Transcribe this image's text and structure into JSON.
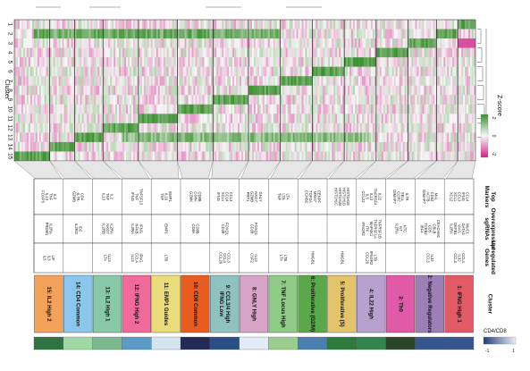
{
  "chart_data": {
    "type": "heatmap",
    "figure_orientation": "rotated 90 degrees counter-clockwise",
    "rows": [
      "1",
      "2",
      "3",
      "4",
      "5",
      "6",
      "7",
      "8",
      "9",
      "10",
      "11",
      "12",
      "13",
      "14",
      "15"
    ],
    "row_axis_label": "Cluster",
    "colorbar": {
      "label": "Z-score",
      "ticks": [
        "2",
        "0",
        "-2"
      ],
      "colors": {
        "high": "#3a8f2e",
        "mid": "#f7f7f7",
        "low": "#d1208a"
      }
    },
    "header_labels": {
      "markers": "Top Markers",
      "overexpressed": "Overexpressed sgRNAs",
      "upregulated": "Upregulated Genes",
      "cluster": "Cluster"
    },
    "clusters": [
      {
        "name": "1: IFNG High 1",
        "color": "#e15a66",
        "markers": "CCL4 IFNG CCL3 XCL1 XCL2",
        "sgrnas": "MUC1 GATA3 VAV1 DEFB1 IL2RA",
        "genes": "CCL4 IL32 CCL3",
        "bar": "#35568c"
      },
      {
        "name": "2: Negative Regulators",
        "color": "#9b7fb5",
        "markers": "MAL CD52 ACTB GIMAP7",
        "sgrnas": "CEACAM1 CBLB CD5 TCEB2 IRF4",
        "genes": "IL32 CCL5",
        "bar": "#35568c"
      },
      {
        "name": "3: Th0",
        "color": "#e05aa8",
        "markers": "IL7R SELL CCR7 GIMAP7",
        "sgrnas": "NTC NT IL2RA",
        "genes": "",
        "bar": "#2a4428"
      },
      {
        "name": "4: IL22 High",
        "color": "#b7a1cf",
        "markers": "IL22 TNFRSF4 IL13 IL5 CCL22",
        "sgrnas": "TNFRSF1B TNFRSF1A MAP4K1 ITK IFNGR2",
        "genes": "LTB IFNGR2 CCL20",
        "bar": "#33864d"
      },
      {
        "name": "5: Proliferative (S)",
        "color": "#e3c46b",
        "markers": "HIST1H1E HIST1H1D HIST1H1B HIST1H1C",
        "sgrnas": "",
        "genes": "HMGB1",
        "bar": "#2f7b3d"
      },
      {
        "name": "6: Proliferative (G2/M)",
        "color": "#5aa84a",
        "markers": "CENPF MKI67 TOP2A CCNB2",
        "sgrnas": "",
        "genes": "HMGB1",
        "bar": "#4a7fb0"
      },
      {
        "name": "7: TNF Locus High",
        "color": "#8fca86",
        "markers": "LTA LTB TNF",
        "sgrnas": "",
        "genes": "LTB LTA",
        "bar": "#9ccd8f"
      },
      {
        "name": "8: GNLY High",
        "color": "#d6a4c6",
        "markers": "GNLY NKG7 GZMB PRF1",
        "sgrnas": "FOXQ1 CD28",
        "genes": "IL13 CSF2",
        "bar": "#e2ecf6"
      },
      {
        "name": "9: CCL3/4 High, IFNG Low",
        "color": "#8ec3bf",
        "markers": "CCL3 CCL4 XCL1 IFNG",
        "sgrnas": "FOXQ1 CD28",
        "genes": "CCL3 CCL4 CCL20",
        "bar": "#2a4f86"
      },
      {
        "name": "10: CD8 Common",
        "color": "#e95c1e",
        "markers": "CD8B CD8A GZMK",
        "sgrnas": "CD8B CD8A",
        "genes": "",
        "bar": "#222a58"
      },
      {
        "name": "11: EMP1 Guides",
        "color": "#eadc7a",
        "markers": "EMP1 IL10 TNF",
        "sgrnas": "EMP1",
        "genes": "LTB",
        "bar": "#d5e4f1"
      },
      {
        "name": "12: IFNG High 2",
        "color": "#f06a9a",
        "markers": "TNFSF13 TNF IFNG",
        "sgrnas": "IFNG NFKB IL2RA",
        "genes": "IFNG CCL4 IL13",
        "bar": "#5c9bc8"
      },
      {
        "name": "13: IL2 High 1",
        "color": "#88c9a7",
        "markers": "IL2 TNF IL13",
        "sgrnas": "IL2RA NKG7 IL2RB",
        "genes": "IL13 LTA",
        "bar": "#7db98f"
      },
      {
        "name": "14: CD4 Common",
        "color": "#8bc6ec",
        "markers": "CD4 IL7R GZMB",
        "sgrnas": "ID2 IL2RG",
        "genes": "",
        "bar": "#9fd8a4"
      },
      {
        "name": "15: IL2 High 2",
        "color": "#f4a259",
        "markers": "IL2 TNF IL13 FOXP3",
        "sgrnas": "IL2RA PRDM1",
        "genes": "LIF IL3 IL5",
        "bar": "#2f7442"
      }
    ],
    "bottom_bar_label": "CD4/CD8",
    "bottom_bar_ticks": [
      "-1",
      "1"
    ]
  }
}
